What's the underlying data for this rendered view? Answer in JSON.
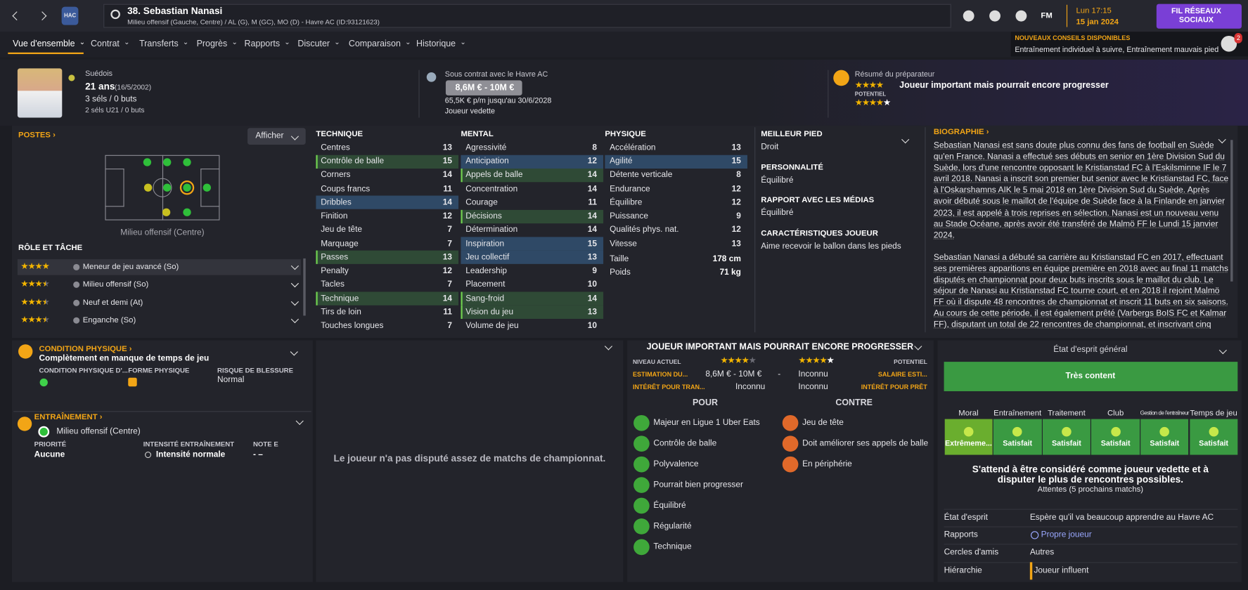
{
  "header": {
    "title": "38. Sebastian Nanasi",
    "subtitle": "Milieu offensif (Gauche, Centre) / AL (G), M (GC), MO (D) - Havre AC (ID:93121623)",
    "club": "HAC",
    "fm": "FM",
    "time": "Lun 17:15",
    "date": "15 jan 2024",
    "social": "FIL RÉSEAUX SOCIAUX",
    "notice_title": "NOUVEAUX CONSEILS DISPONIBLES",
    "notice_text": "Entraînement individuel à suivre, Entraînement mauvais pied",
    "notice_count": "2"
  },
  "tabs": [
    "Vue d'ensemble",
    "Contrat",
    "Transferts",
    "Progrès",
    "Rapports",
    "Discuter",
    "Comparaison",
    "Historique"
  ],
  "summary": {
    "nationality": "Suédois",
    "age": "21 ans",
    "birth": "(16/5/2002)",
    "caps": "3 séls / 0 buts",
    "u21": "2 séls U21 / 0 buts",
    "contract": "Sous contrat avec le Havre AC",
    "value": "8,6M € - 10M €",
    "wage": "65,5K € p/m jusqu'au 30/6/2028",
    "status": "Joueur vedette",
    "coach_label": "Résumé du préparateur",
    "coach_stars": 4,
    "coach_text": "Joueur important mais pourrait encore progresser",
    "potential_label": "POTENTIEL",
    "potential_stars": [
      4,
      5
    ]
  },
  "positions": {
    "title": "POSTES",
    "button": "Afficher",
    "position": "Milieu offensif (Centre)",
    "roles_title": "RÔLE ET TÂCHE",
    "roles": [
      {
        "name": "Meneur de jeu avancé (So)",
        "stars": 4
      },
      {
        "name": "Milieu offensif (So)",
        "stars": 3.5
      },
      {
        "name": "Neuf et demi (At)",
        "stars": 3.5
      },
      {
        "name": "Enganche (So)",
        "stars": 3.5
      }
    ]
  },
  "attributes": [
    {
      "title": "TECHNIQUE",
      "rows": [
        {
          "name": "Centres",
          "value": 13
        },
        {
          "name": "Contrôle de balle",
          "value": 15,
          "key": "green"
        },
        {
          "name": "Corners",
          "value": 14
        },
        {
          "name": "Coups francs",
          "value": 11
        },
        {
          "name": "Dribbles",
          "value": 14,
          "key": "blue"
        },
        {
          "name": "Finition",
          "value": 12
        },
        {
          "name": "Jeu de tête",
          "value": 7
        },
        {
          "name": "Marquage",
          "value": 7
        },
        {
          "name": "Passes",
          "value": 13,
          "key": "green"
        },
        {
          "name": "Penalty",
          "value": 12
        },
        {
          "name": "Tacles",
          "value": 7
        },
        {
          "name": "Technique",
          "value": 14,
          "key": "green"
        },
        {
          "name": "Tirs de loin",
          "value": 11
        },
        {
          "name": "Touches longues",
          "value": 7
        }
      ]
    },
    {
      "title": "MENTAL",
      "rows": [
        {
          "name": "Agressivité",
          "value": 8
        },
        {
          "name": "Anticipation",
          "value": 12,
          "key": "blue"
        },
        {
          "name": "Appels de balle",
          "value": 14,
          "key": "green"
        },
        {
          "name": "Concentration",
          "value": 14
        },
        {
          "name": "Courage",
          "value": 11
        },
        {
          "name": "Décisions",
          "value": 14,
          "key": "green"
        },
        {
          "name": "Détermination",
          "value": 14
        },
        {
          "name": "Inspiration",
          "value": 15,
          "key": "blue"
        },
        {
          "name": "Jeu collectif",
          "value": 13,
          "key": "blue"
        },
        {
          "name": "Leadership",
          "value": 9
        },
        {
          "name": "Placement",
          "value": 10
        },
        {
          "name": "Sang-froid",
          "value": 14,
          "key": "green"
        },
        {
          "name": "Vision du jeu",
          "value": 13,
          "key": "green"
        },
        {
          "name": "Volume de jeu",
          "value": 10
        }
      ]
    },
    {
      "title": "PHYSIQUE",
      "rows": [
        {
          "name": "Accélération",
          "value": 13
        },
        {
          "name": "Agilité",
          "value": 15,
          "key": "blue"
        },
        {
          "name": "Détente verticale",
          "value": 8
        },
        {
          "name": "Endurance",
          "value": 12
        },
        {
          "name": "Équilibre",
          "value": 12
        },
        {
          "name": "Puissance",
          "value": 9
        },
        {
          "name": "Qualités phys. nat.",
          "value": 12
        },
        {
          "name": "Vitesse",
          "value": 13
        }
      ],
      "extra": [
        {
          "name": "Taille",
          "value": "178 cm"
        },
        {
          "name": "Poids",
          "value": "71 kg"
        }
      ]
    }
  ],
  "info": [
    {
      "label": "MEILLEUR PIED",
      "value": "Droit"
    },
    {
      "label": "PERSONNALITÉ",
      "value": "Équilibré"
    },
    {
      "label": "RAPPORT AVEC LES MÉDIAS",
      "value": "Équilibré"
    },
    {
      "label": "CARACTÉRISTIQUES JOUEUR",
      "value": "Aime recevoir le ballon dans les pieds"
    }
  ],
  "biography": {
    "title": "BIOGRAPHIE",
    "paragraphs": [
      "Sebastian Nanasi est sans doute plus connu des fans de football en Suède qu'en France. Nanasi a effectué ses débuts en senior en 1ère Division Sud du Suède, lors d'une rencontre opposant le Kristianstad FC à l'Eskilsminne IF le 7 avril 2018. Nanasi a inscrit son premier but senior avec le Kristianstad FC, face à l'Oskarshamns AIK le 5 mai 2018 en 1ère Division Sud du Suède. Après avoir débuté sous le maillot de l'équipe de Suède face à la Finlande en janvier 2023, il est appelé à trois reprises en sélection. Nanasi est un nouveau venu au Stade Océane, après avoir été transféré de Malmö FF le Lundi 15 janvier 2024.",
      "Sebastian Nanasi a débuté sa carrière au Kristianstad FC en 2017, effectuant ses premières apparitions en équipe première en 2018 avec au final 11 matchs disputés en championnat pour deux buts inscrits sous le maillot du club. Le séjour de Nanasi au Kristianstad FC tourne court, et en 2018 il rejoint Malmö FF où il dispute 48 rencontres de championnat et inscrit 11 buts en six saisons. Au cours de cette période, il est également prêté (Varbergs BoIS FC et Kalmar FF), disputant un total de 22 rencontres de championnat, et inscrivant cinq buts. Sous les ordres de Nanasi, Malmö FF a remporté deux fois Première Ligue suédoise."
    ]
  },
  "condition": {
    "title": "CONDITION PHYSIQUE",
    "text": "Complètement en manque de temps de jeu",
    "labels": [
      "CONDITION PHYSIQUE D'...",
      "FORME PHYSIQUE",
      "RISQUE DE BLESSURE"
    ],
    "risk": "Normal"
  },
  "training": {
    "title": "ENTRAÎNEMENT",
    "position": "Milieu offensif (Centre)",
    "labels": [
      "PRIORITÉ",
      "INTENSITÉ ENTRAÎNEMENT",
      "NOTE E"
    ],
    "values": [
      "Aucune",
      "Intensité normale",
      "-  –"
    ]
  },
  "matches_note": "Le joueur n'a pas disputé assez de matchs de championnat.",
  "scout": {
    "title": "JOUEUR IMPORTANT MAIS POURRAIT ENCORE PROGRESSER",
    "current_label": "NIVEAU ACTUEL",
    "current_stars": 4,
    "potential_label": "POTENTIEL",
    "potential_stars": [
      4,
      5
    ],
    "value_label": "ESTIMATION DU...",
    "value": "8,6M € - 10M €",
    "value_sep": "-",
    "wage": "Inconnu",
    "wage_label": "SALAIRE ESTI...",
    "transfer_label": "INTÉRÊT POUR TRAN...",
    "transfer": "Inconnu",
    "loan": "Inconnu",
    "loan_label": "INTÉRÊT POUR PRÊT",
    "pros_title": "POUR",
    "pros": [
      "Majeur en Ligue 1 Uber Eats",
      "Contrôle de balle",
      "Polyvalence",
      "Pourrait bien progresser",
      "Équilibré",
      "Régularité",
      "Technique"
    ],
    "cons_title": "CONTRE",
    "cons": [
      "Jeu de tête",
      "Doit améliorer ses appels de balle",
      "En périphérie"
    ]
  },
  "morale": {
    "title": "État d'esprit général",
    "overall": "Très content",
    "columns": [
      {
        "name": "Moral",
        "status": "Extrêmeme..."
      },
      {
        "name": "Entraînement",
        "status": "Satisfait"
      },
      {
        "name": "Traitement",
        "status": "Satisfait"
      },
      {
        "name": "Club",
        "status": "Satisfait"
      },
      {
        "name": "Gestion de l'entraîneur",
        "status": "Satisfait"
      },
      {
        "name": "Temps de jeu",
        "status": "Satisfait"
      }
    ],
    "expectation": "S'attend à être considéré comme joueur vedette et à disputer le plus de rencontres possibles.",
    "expectation_note": "Attentes (5 prochains matchs)",
    "rows": [
      {
        "label": "État d'esprit",
        "value": "Espère qu'il va beaucoup apprendre au Havre AC"
      },
      {
        "label": "Rapports",
        "value": "Propre joueur"
      },
      {
        "label": "Cercles d'amis",
        "value": "Autres"
      },
      {
        "label": "Hiérarchie",
        "value": "Joueur influent"
      }
    ]
  }
}
